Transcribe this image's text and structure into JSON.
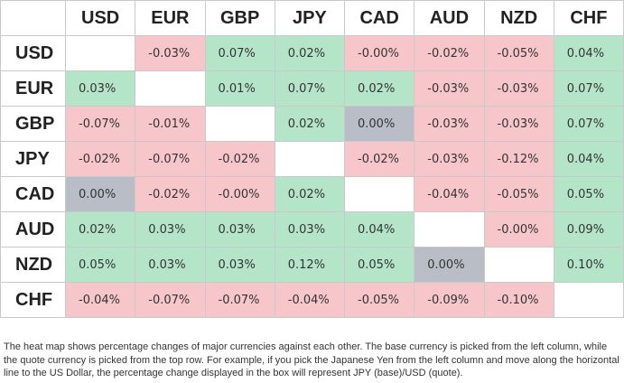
{
  "table": {
    "columns": [
      "USD",
      "EUR",
      "GBP",
      "JPY",
      "CAD",
      "AUD",
      "NZD",
      "CHF"
    ],
    "rows": [
      {
        "label": "USD",
        "cells": [
          null,
          "-0.03%",
          "0.07%",
          "0.02%",
          "-0.00%",
          "-0.02%",
          "-0.05%",
          "0.04%"
        ]
      },
      {
        "label": "EUR",
        "cells": [
          "0.03%",
          null,
          "0.01%",
          "0.07%",
          "0.02%",
          "-0.03%",
          "-0.03%",
          "0.07%"
        ]
      },
      {
        "label": "GBP",
        "cells": [
          "-0.07%",
          "-0.01%",
          null,
          "0.02%",
          "0.00%",
          "-0.03%",
          "-0.03%",
          "0.07%"
        ]
      },
      {
        "label": "JPY",
        "cells": [
          "-0.02%",
          "-0.07%",
          "-0.02%",
          null,
          "-0.02%",
          "-0.03%",
          "-0.12%",
          "0.04%"
        ]
      },
      {
        "label": "CAD",
        "cells": [
          "0.00%",
          "-0.02%",
          "-0.00%",
          "0.02%",
          null,
          "-0.04%",
          "-0.05%",
          "0.05%"
        ]
      },
      {
        "label": "AUD",
        "cells": [
          "0.02%",
          "0.03%",
          "0.03%",
          "0.03%",
          "0.04%",
          null,
          "-0.00%",
          "0.09%"
        ]
      },
      {
        "label": "NZD",
        "cells": [
          "0.05%",
          "0.03%",
          "0.03%",
          "0.12%",
          "0.05%",
          "0.00%",
          null,
          "0.10%"
        ]
      },
      {
        "label": "CHF",
        "cells": [
          "-0.04%",
          "-0.07%",
          "-0.07%",
          "-0.04%",
          "-0.05%",
          "-0.09%",
          "-0.10%",
          null
        ]
      }
    ]
  },
  "caption": "The heat map shows percentage changes of major currencies against each other. The base currency is picked from the left column, while the quote currency is picked from the top row. For example, if you pick the Japanese Yen from the left column and move along the horizontal line to the US Dollar, the percentage change displayed in the box will represent JPY (base)/USD (quote)."
}
